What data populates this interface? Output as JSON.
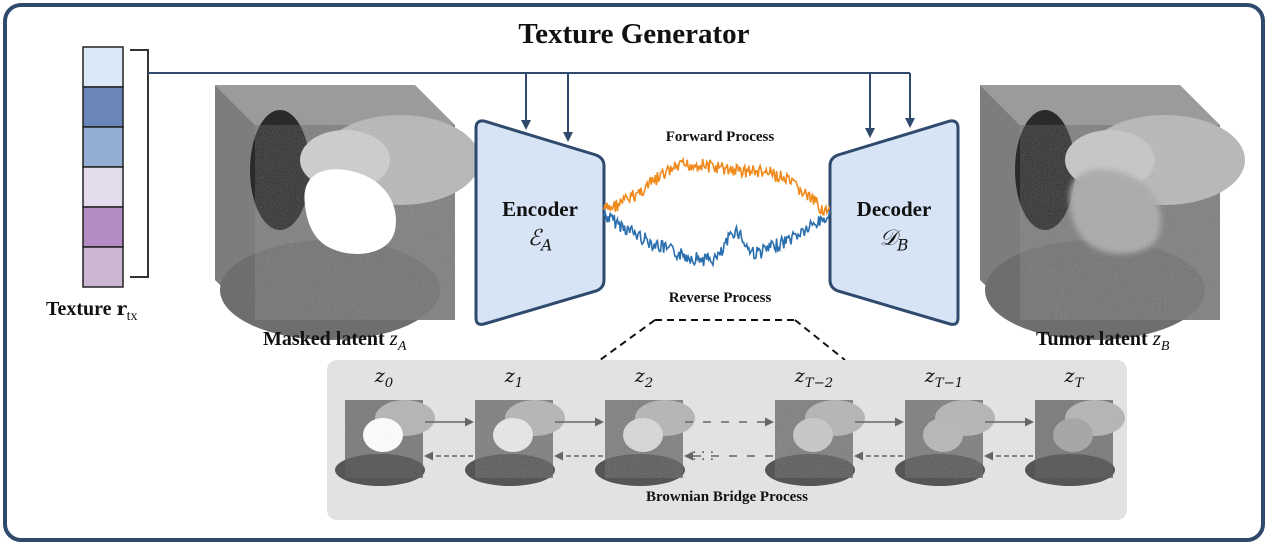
{
  "title": "Texture Generator",
  "texture": {
    "label": "Texture",
    "symbol": "r",
    "subscript": "tx",
    "cells": [
      "#dbe8f7",
      "#6a85b7",
      "#93add3",
      "#e4dcec",
      "#b48cc5",
      "#cbb7d2"
    ]
  },
  "masked": {
    "label": "Masked latent",
    "var": "z",
    "sub": "A"
  },
  "tumor": {
    "label": "Tumor latent",
    "var": "z",
    "sub": "B"
  },
  "encoder": {
    "label": "Encoder",
    "math": "ℰ",
    "sub": "A"
  },
  "decoder": {
    "label": "Decoder",
    "math": "𝒟",
    "sub": "B"
  },
  "forward_label": "Forward Process",
  "reverse_label": "Reverse Process",
  "bridge": {
    "label": "Brownian Bridge Process",
    "steps": [
      {
        "var": "z",
        "sub": "0"
      },
      {
        "var": "z",
        "sub": "1"
      },
      {
        "var": "z",
        "sub": "2"
      },
      {
        "var": "z",
        "sub": "T−2"
      },
      {
        "var": "z",
        "sub": "T−1"
      },
      {
        "var": "z",
        "sub": "T"
      }
    ],
    "ellipsis": "· · ·"
  },
  "colors": {
    "frame": "#2f4a6d",
    "block_fill": "#d6e4f6",
    "block_stroke": "#2f4a6d",
    "forward": "#f08a1c",
    "reverse": "#2a6fae",
    "panel": "#e2e2e2"
  }
}
